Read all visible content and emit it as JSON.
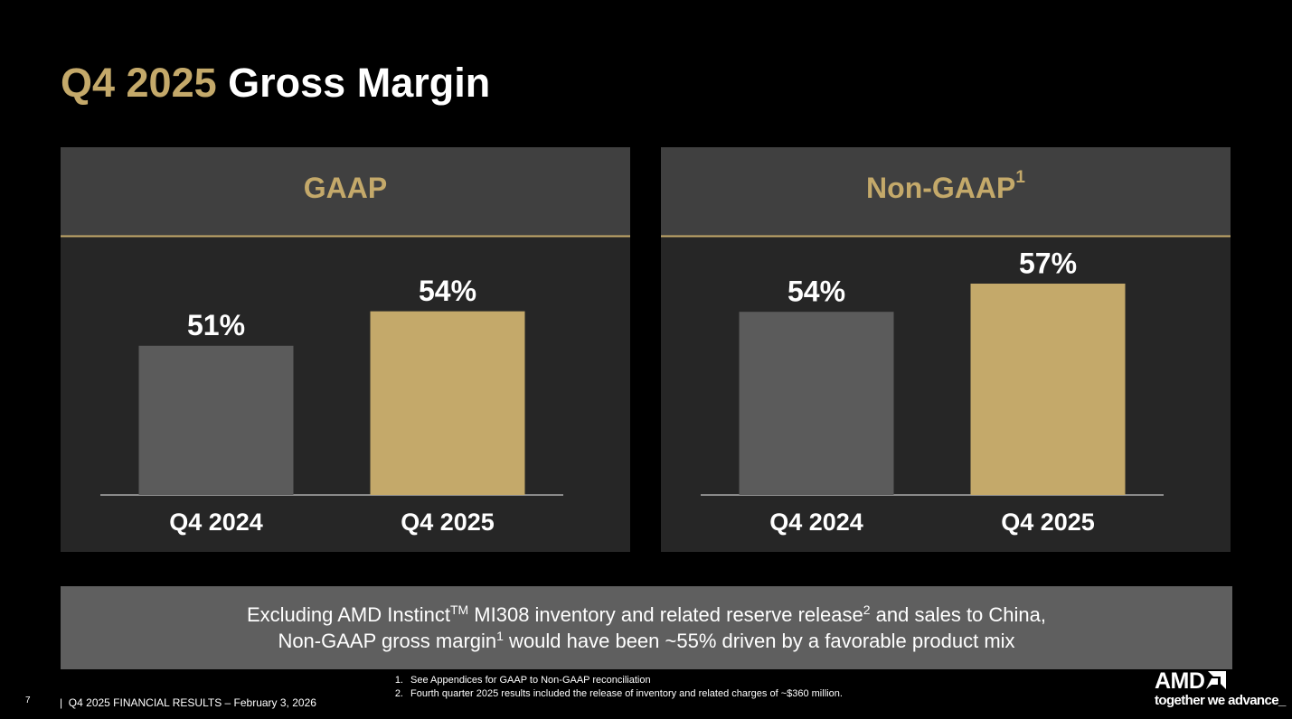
{
  "title": {
    "highlight": "Q4 2025",
    "text": "Gross Margin"
  },
  "chart_data": [
    {
      "type": "bar",
      "title": "GAAP",
      "categories": [
        "Q4 2024",
        "Q4 2025"
      ],
      "values": [
        51,
        54
      ],
      "value_labels": [
        "51%",
        "54%"
      ],
      "colors": [
        "#5b5b5b",
        "#c4a96a"
      ],
      "ylim": [
        38,
        60.5
      ]
    },
    {
      "type": "bar",
      "title": "Non-GAAP",
      "title_sup": "1",
      "categories": [
        "Q4 2024",
        "Q4 2025"
      ],
      "values": [
        54,
        57
      ],
      "value_labels": [
        "54%",
        "57%"
      ],
      "colors": [
        "#5b5b5b",
        "#c4a96a"
      ],
      "ylim": [
        34.5,
        62
      ]
    }
  ],
  "callout": {
    "lines": [
      [
        {
          "text": "Excluding AMD Instinct"
        },
        {
          "sup": "TM"
        },
        {
          "text": " MI308 inventory and related reserve release"
        },
        {
          "sup": "2"
        },
        {
          "text": " and sales to China,"
        }
      ],
      [
        {
          "text": "Non-GAAP gross margin"
        },
        {
          "sup": "1"
        },
        {
          "text": " would have been ~55% driven by a favorable product mix"
        }
      ]
    ]
  },
  "footnotes": [
    {
      "number": "1.",
      "text": "See Appendices for GAAP to Non-GAAP reconciliation"
    },
    {
      "number": "2.",
      "text": "Fourth quarter 2025 results included the release of inventory and related charges of ~$360 million."
    }
  ],
  "footer": {
    "page": "7",
    "separator": "|",
    "text": "Q4 2025 FINANCIAL RESULTS – February 3, 2026"
  },
  "logo": {
    "brand": "AMD",
    "tagline": "together we advance_"
  }
}
